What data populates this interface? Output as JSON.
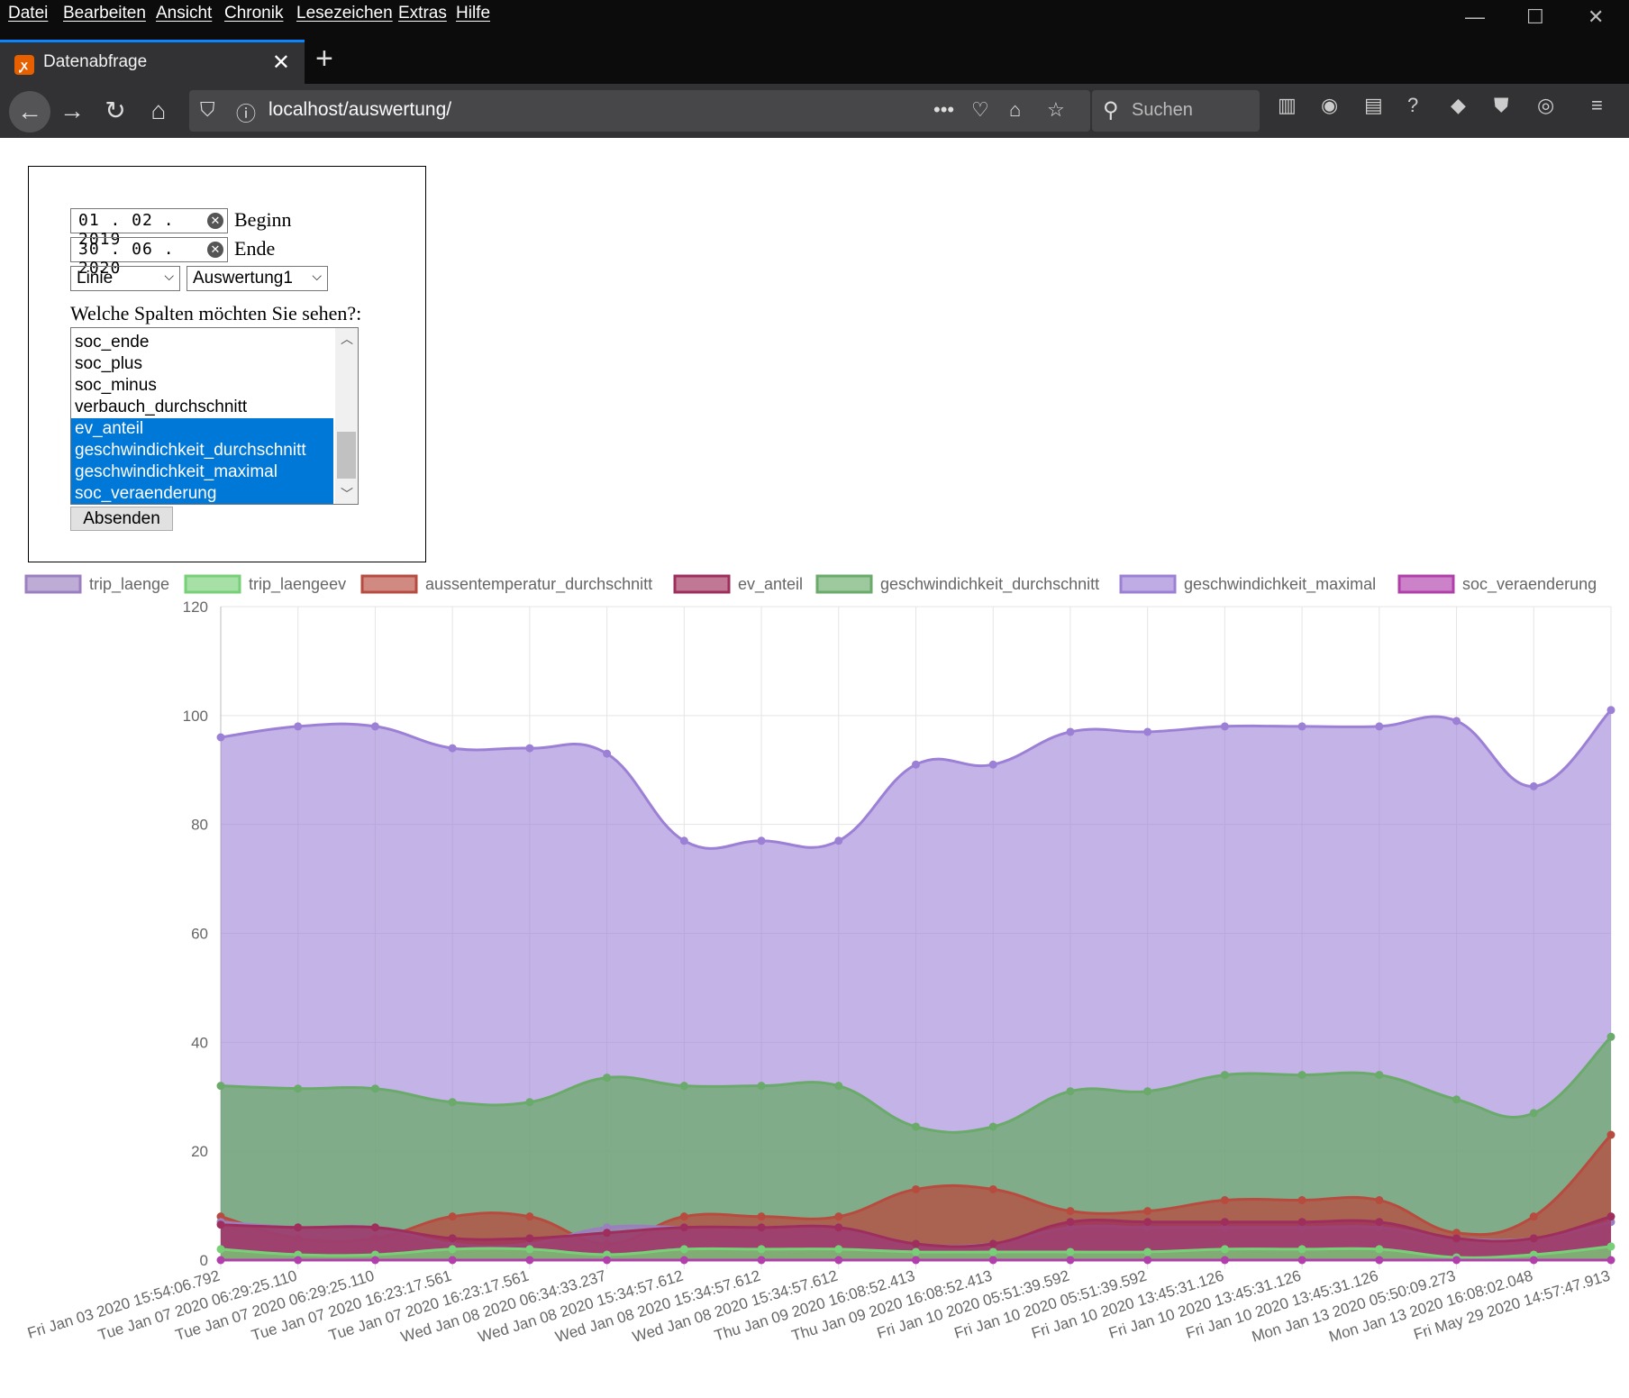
{
  "browser": {
    "menu": [
      "Datei",
      "Bearbeiten",
      "Ansicht",
      "Chronik",
      "Lesezeichen",
      "Extras",
      "Hilfe"
    ],
    "tab_title": "Datenabfrage",
    "url": "localhost/auswertung/",
    "search_placeholder": "Suchen"
  },
  "form": {
    "start_date": "01 . 02 . 2019",
    "start_label": "Beginn",
    "end_date": "30 . 06 . 2020",
    "end_label": "Ende",
    "chart_type": "Linie",
    "evaluation": "Auswertung1",
    "columns_question": "Welche Spalten möchten Sie sehen?:",
    "columns": [
      {
        "label": "soc_ende",
        "selected": false
      },
      {
        "label": "soc_plus",
        "selected": false
      },
      {
        "label": "soc_minus",
        "selected": false
      },
      {
        "label": "verbauch_durchschnitt",
        "selected": false
      },
      {
        "label": "ev_anteil",
        "selected": true
      },
      {
        "label": "geschwindichkeit_durchschnitt",
        "selected": true
      },
      {
        "label": "geschwindichkeit_maximal",
        "selected": true
      },
      {
        "label": "soc_veraenderung",
        "selected": true
      }
    ],
    "submit_label": "Absenden"
  },
  "chart_data": {
    "type": "area",
    "title": "",
    "ylim": [
      0,
      120
    ],
    "yticks": [
      0,
      20,
      40,
      60,
      80,
      100,
      120
    ],
    "grid": true,
    "legend_position": "top",
    "categories": [
      "Fri Jan 03 2020 15:54:06.792",
      "Tue Jan 07 2020 06:29:25.110",
      "Tue Jan 07 2020 06:29:25.110",
      "Tue Jan 07 2020 16:23:17.561",
      "Tue Jan 07 2020 16:23:17.561",
      "Wed Jan 08 2020 06:34:33.237",
      "Wed Jan 08 2020 15:34:57.612",
      "Wed Jan 08 2020 15:34:57.612",
      "Wed Jan 08 2020 15:34:57.612",
      "Thu Jan 09 2020 16:08:52.413",
      "Thu Jan 09 2020 16:08:52.413",
      "Fri Jan 10 2020 05:51:39.592",
      "Fri Jan 10 2020 05:51:39.592",
      "Fri Jan 10 2020 13:45:31.126",
      "Fri Jan 10 2020 13:45:31.126",
      "Fri Jan 10 2020 13:45:31.126",
      "Mon Jan 13 2020 05:50:09.273",
      "Mon Jan 13 2020 16:08:02.048",
      "Fri May 29 2020 14:57:47.913"
    ],
    "series": [
      {
        "name": "trip_laenge",
        "color": "#9b7fc0",
        "values": [
          7,
          6,
          6,
          3,
          3,
          6,
          6,
          6,
          6,
          3,
          3,
          6,
          6,
          6,
          6,
          6,
          4,
          4,
          7
        ]
      },
      {
        "name": "trip_laengeev",
        "color": "#77d077",
        "values": [
          2,
          1,
          1,
          2,
          2,
          1,
          2,
          2,
          2,
          1.5,
          1.5,
          1.5,
          1.5,
          2,
          2,
          2,
          0.5,
          1,
          2.5
        ]
      },
      {
        "name": "aussentemperatur_durchschnitt",
        "color": "#b84b3f",
        "values": [
          8,
          4,
          4,
          8,
          8,
          3,
          8,
          8,
          8,
          13,
          13,
          9,
          9,
          11,
          11,
          11,
          5,
          8,
          23
        ]
      },
      {
        "name": "ev_anteil",
        "color": "#9e2f5c",
        "values": [
          6.5,
          6,
          6,
          4,
          4,
          5,
          6,
          6,
          6,
          3,
          3,
          7,
          7,
          7,
          7,
          7,
          4,
          4,
          8
        ]
      },
      {
        "name": "geschwindichkeit_durchschnitt",
        "color": "#6aaa6a",
        "values": [
          32,
          31.5,
          31.5,
          29,
          29,
          33.5,
          32,
          32,
          32,
          24.5,
          24.5,
          31,
          31,
          34,
          34,
          34,
          29.5,
          27,
          41
        ]
      },
      {
        "name": "geschwindichkeit_maximal",
        "color": "#9c80d6",
        "values": [
          96,
          98,
          98,
          94,
          94,
          93,
          77,
          77,
          77,
          91,
          91,
          97,
          97,
          98,
          98,
          98,
          99,
          87,
          101
        ]
      },
      {
        "name": "soc_veraenderung",
        "color": "#b03faa",
        "values": [
          0,
          0,
          0,
          0,
          0,
          0,
          0,
          0,
          0,
          0,
          0,
          0,
          0,
          0,
          0,
          0,
          0,
          0,
          0
        ]
      }
    ]
  }
}
